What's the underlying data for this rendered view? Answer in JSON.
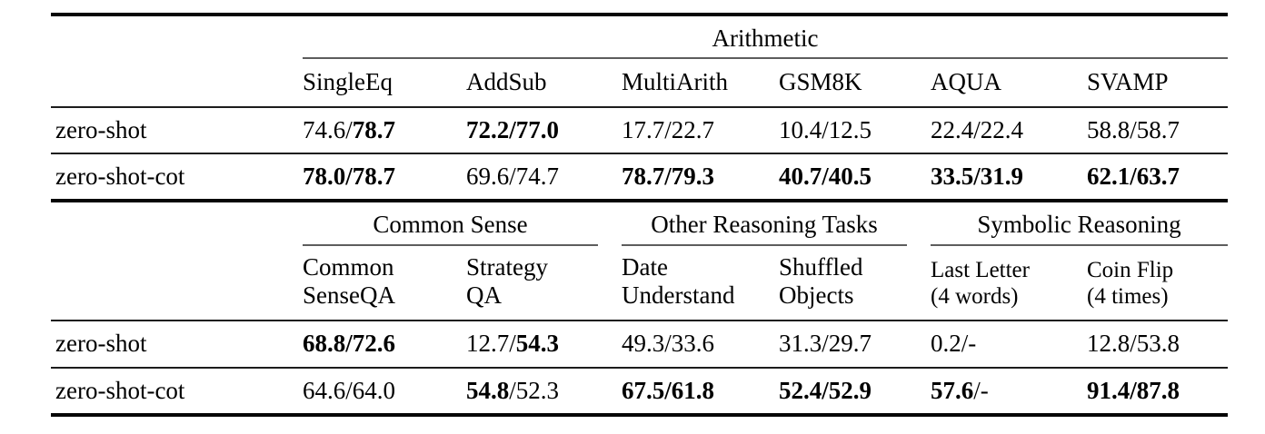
{
  "table": {
    "sections": [
      {
        "group_headers": [
          {
            "label": "Arithmetic",
            "span": 6
          }
        ],
        "columns": [
          "SingleEq",
          "AddSub",
          "MultiArith",
          "GSM8K",
          "AQUA",
          "SVAMP"
        ],
        "rows": [
          {
            "label": "zero-shot",
            "cells": [
              "74.6/**78.7**",
              "**72.2/77.0**",
              "17.7/22.7",
              "10.4/12.5",
              "22.4/22.4",
              "58.8/58.7"
            ]
          },
          {
            "label": "zero-shot-cot",
            "cells": [
              "**78.0/78.7**",
              "69.6/74.7",
              "**78.7/79.3**",
              "**40.7/40.5**",
              "**33.5/31.9**",
              "**62.1/63.7**"
            ]
          }
        ]
      },
      {
        "group_headers": [
          {
            "label": "Common Sense",
            "span": 2
          },
          {
            "label": "Other Reasoning Tasks",
            "span": 2
          },
          {
            "label": "Symbolic Reasoning",
            "span": 2
          }
        ],
        "columns": [
          "Common\nSenseQA",
          "Strategy\nQA",
          "Date\nUnderstand",
          "Shuffled\nObjects",
          "Last Letter\n(4 words)",
          "Coin Flip\n(4 times)"
        ],
        "rows": [
          {
            "label": "zero-shot",
            "cells": [
              "**68.8/72.6**",
              "12.7/**54.3**",
              "49.3/33.6",
              "31.3/29.7",
              "0.2/-",
              "12.8/53.8"
            ]
          },
          {
            "label": "zero-shot-cot",
            "cells": [
              "64.6/64.0",
              "**54.8**/52.3",
              "**67.5/61.8**",
              "**52.4/52.9**",
              "**57.6**/-",
              "**91.4/87.8**"
            ]
          }
        ]
      }
    ]
  },
  "colors": {
    "background": "#ffffff",
    "text": "#000000",
    "rule_heavy": "#060606",
    "rule_mid": "#1c1c1c",
    "rule_cmid": "#5d5d5d"
  }
}
